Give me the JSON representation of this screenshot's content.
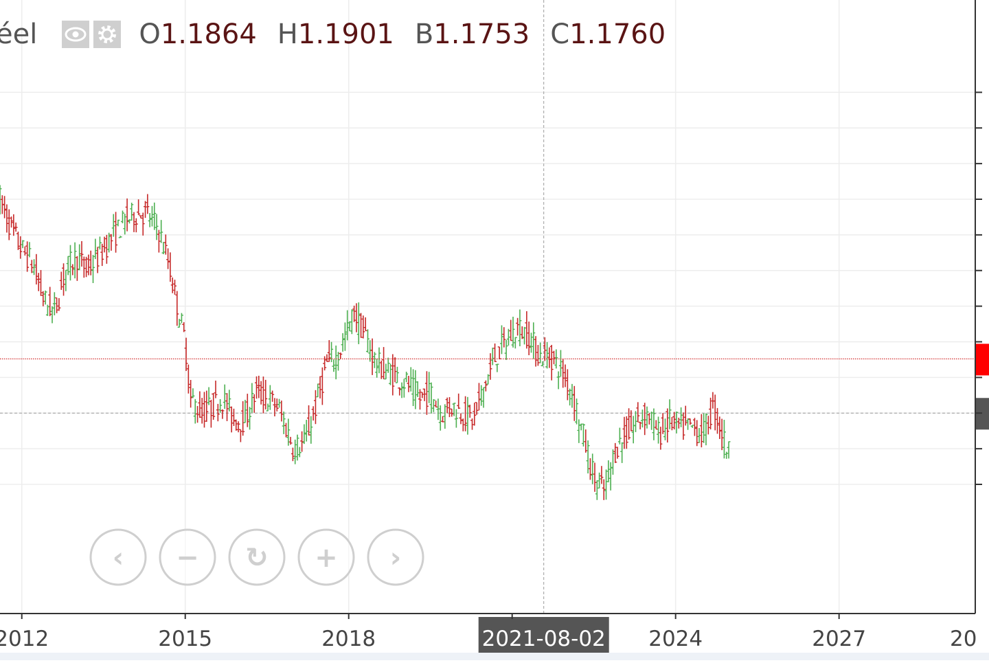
{
  "legend": {
    "series_name": "éel",
    "icons": [
      "eye-icon",
      "gear-icon"
    ],
    "ohlc": [
      {
        "key": "O",
        "value": "1.1864"
      },
      {
        "key": "H",
        "value": "1.1901"
      },
      {
        "key": "B",
        "value": "1.1753"
      },
      {
        "key": "C",
        "value": "1.1760"
      }
    ]
  },
  "crosshair": {
    "date_label": "2021-08-02",
    "date": "2021-08-02"
  },
  "navigation": {
    "buttons": [
      {
        "name": "pan-left-button",
        "icon": "chevron-left-icon",
        "glyph": "‹"
      },
      {
        "name": "zoom-out-button",
        "icon": "minus-icon",
        "glyph": "−"
      },
      {
        "name": "reset-button",
        "icon": "reset-icon",
        "glyph": "↻"
      },
      {
        "name": "zoom-in-button",
        "icon": "plus-icon",
        "glyph": "+"
      },
      {
        "name": "pan-right-button",
        "icon": "chevron-right-icon",
        "glyph": "›"
      }
    ]
  },
  "colors": {
    "up_bar": "#4caf50",
    "down_bar": "#c62828",
    "last_price_line": "#d32f2f",
    "last_price_marker": "#ff0000",
    "crosshair_marker": "#555555",
    "date_badge": "#555555",
    "legend_value": "#5a1414"
  },
  "chart_data": {
    "type": "ohlc",
    "title": "",
    "xlabel": "",
    "ylabel": "",
    "x_ticks": [
      "2012",
      "2015",
      "2018",
      "2024",
      "2027",
      "20"
    ],
    "x_range": [
      2011.6,
      2029.5
    ],
    "y_range": [
      1.0,
      1.55
    ],
    "grid": true,
    "last_price": 1.176,
    "crosshair_price": 1.1,
    "series": [
      {
        "values": [
          [
            2011.6,
            1.4
          ],
          [
            2011.8,
            1.36
          ],
          [
            2012.0,
            1.33
          ],
          [
            2012.2,
            1.31
          ],
          [
            2012.4,
            1.26
          ],
          [
            2012.6,
            1.24
          ],
          [
            2012.8,
            1.3
          ],
          [
            2013.0,
            1.32
          ],
          [
            2013.2,
            1.3
          ],
          [
            2013.5,
            1.33
          ],
          [
            2013.7,
            1.35
          ],
          [
            2013.9,
            1.37
          ],
          [
            2014.1,
            1.38
          ],
          [
            2014.3,
            1.38
          ],
          [
            2014.5,
            1.36
          ],
          [
            2014.7,
            1.31
          ],
          [
            2014.8,
            1.27
          ],
          [
            2015.0,
            1.2
          ],
          [
            2015.1,
            1.12
          ],
          [
            2015.3,
            1.1
          ],
          [
            2015.5,
            1.11
          ],
          [
            2015.7,
            1.12
          ],
          [
            2015.9,
            1.09
          ],
          [
            2016.1,
            1.09
          ],
          [
            2016.3,
            1.13
          ],
          [
            2016.5,
            1.12
          ],
          [
            2016.7,
            1.11
          ],
          [
            2016.9,
            1.07
          ],
          [
            2017.0,
            1.05
          ],
          [
            2017.2,
            1.06
          ],
          [
            2017.4,
            1.11
          ],
          [
            2017.6,
            1.17
          ],
          [
            2017.8,
            1.18
          ],
          [
            2018.0,
            1.22
          ],
          [
            2018.1,
            1.24
          ],
          [
            2018.3,
            1.21
          ],
          [
            2018.5,
            1.17
          ],
          [
            2018.7,
            1.16
          ],
          [
            2018.9,
            1.15
          ],
          [
            2019.1,
            1.14
          ],
          [
            2019.3,
            1.12
          ],
          [
            2019.5,
            1.13
          ],
          [
            2019.7,
            1.1
          ],
          [
            2019.9,
            1.11
          ],
          [
            2020.1,
            1.1
          ],
          [
            2020.3,
            1.09
          ],
          [
            2020.5,
            1.14
          ],
          [
            2020.7,
            1.18
          ],
          [
            2020.9,
            1.2
          ],
          [
            2021.1,
            1.22
          ],
          [
            2021.3,
            1.21
          ],
          [
            2021.5,
            1.18
          ],
          [
            2021.7,
            1.18
          ],
          [
            2021.9,
            1.16
          ],
          [
            2022.1,
            1.13
          ],
          [
            2022.3,
            1.07
          ],
          [
            2022.5,
            1.01
          ],
          [
            2022.7,
            0.99
          ],
          [
            2022.9,
            1.05
          ],
          [
            2023.1,
            1.07
          ],
          [
            2023.3,
            1.09
          ],
          [
            2023.5,
            1.1
          ],
          [
            2023.7,
            1.07
          ],
          [
            2023.9,
            1.09
          ],
          [
            2024.1,
            1.08
          ],
          [
            2024.3,
            1.08
          ],
          [
            2024.5,
            1.07
          ],
          [
            2024.7,
            1.11
          ],
          [
            2024.9,
            1.06
          ],
          [
            2025.0,
            1.04
          ]
        ]
      }
    ]
  }
}
